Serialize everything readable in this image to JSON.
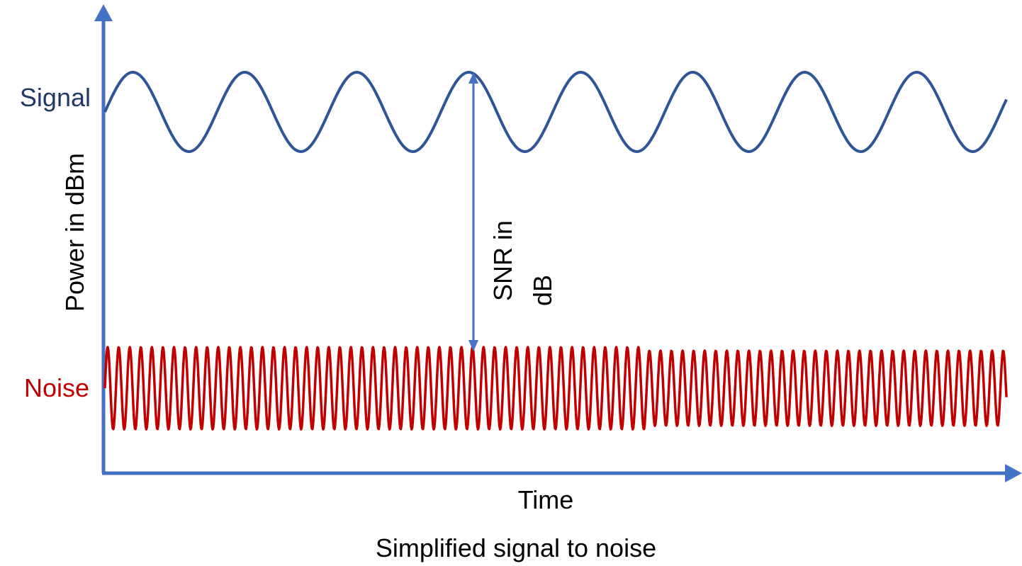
{
  "labels": {
    "signal": "Signal",
    "noise": "Noise",
    "y_axis": "Power in dBm",
    "x_axis": "Time",
    "snr_line1": "SNR in",
    "snr_line2": "dB",
    "caption": "Simplified signal to noise"
  },
  "colors": {
    "axis": "#4472C4",
    "signal": "#2F5597",
    "noise": "#C00000",
    "signal_label": "#203864",
    "noise_label": "#C00000",
    "text": "#000000"
  }
}
